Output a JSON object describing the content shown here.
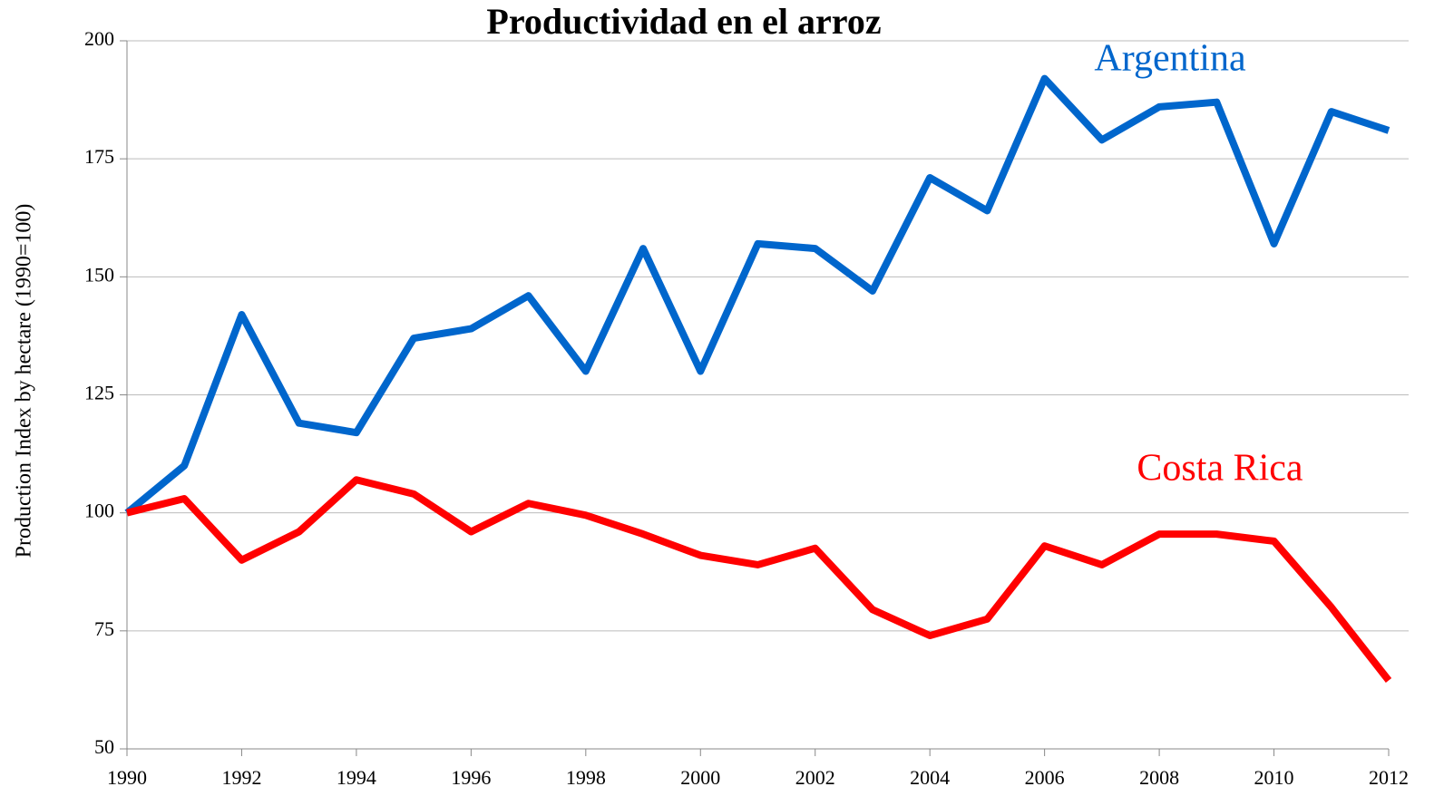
{
  "chart_data": {
    "type": "line",
    "title": "Productividad en el arroz",
    "y_label": "Production Index by hectare (1990=100)",
    "x": [
      1990,
      1991,
      1992,
      1993,
      1994,
      1995,
      1996,
      1997,
      1998,
      1999,
      2000,
      2001,
      2002,
      2003,
      2004,
      2005,
      2006,
      2007,
      2008,
      2009,
      2010,
      2011,
      2012
    ],
    "series": [
      {
        "name": "Argentina",
        "color": "#0066cc",
        "values": [
          100,
          110,
          142,
          119,
          117,
          137,
          139,
          146,
          130,
          156,
          130,
          157,
          156,
          147,
          171,
          164,
          192,
          179,
          186,
          187,
          157,
          185,
          181
        ]
      },
      {
        "name": "Costa Rica",
        "color": "#ff0000",
        "values": [
          100,
          103,
          90,
          96,
          107,
          104,
          96,
          102,
          99.5,
          95.5,
          91,
          89,
          92.5,
          79.5,
          74,
          77.5,
          93,
          89,
          95.5,
          95.5,
          94,
          80,
          64.5
        ]
      }
    ],
    "xlim": [
      1990,
      2012
    ],
    "xticks": [
      1990,
      1992,
      1994,
      1996,
      1998,
      2000,
      2002,
      2004,
      2006,
      2008,
      2010,
      2012
    ],
    "ylim": [
      50,
      200
    ],
    "yticks": [
      50,
      75,
      100,
      125,
      150,
      175,
      200
    ],
    "grid": true
  }
}
